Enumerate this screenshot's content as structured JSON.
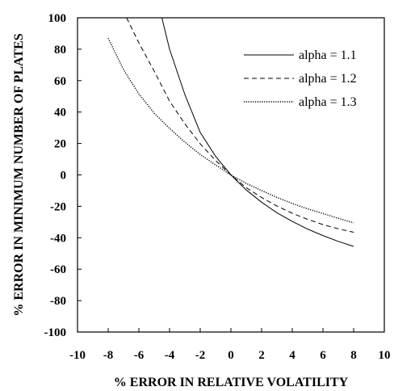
{
  "chart_data": {
    "type": "line",
    "xlabel": "% ERROR IN RELATIVE VOLATILITY",
    "ylabel": "% ERROR IN MINIMUM NUMBER OF PLATES",
    "xlim": [
      -10,
      10
    ],
    "ylim": [
      -100,
      100
    ],
    "xticks": [
      "-10",
      "-8",
      "-6",
      "-4",
      "-2",
      "0",
      "2",
      "4",
      "6",
      "8",
      "10"
    ],
    "yticks": [
      "100",
      "80",
      "60",
      "40",
      "20",
      "0",
      "-20",
      "-40",
      "-60",
      "-80",
      "-100"
    ],
    "grid": false,
    "legend_position": "top-right",
    "series": [
      {
        "name": "alpha = 1.1",
        "style": "solid",
        "x": [
          -4.5,
          -4.0,
          -3.0,
          -2.0,
          -1.0,
          0,
          1,
          2,
          3,
          4,
          5,
          6,
          7,
          8
        ],
        "y": [
          100,
          80.0,
          51.1,
          27.0,
          11.9,
          0,
          -9.6,
          -17.4,
          -24.1,
          -29.6,
          -34.5,
          -38.6,
          -42.3,
          -45.5
        ]
      },
      {
        "name": "alpha = 1.2",
        "style": "dashed",
        "x": [
          -6.8,
          -6.0,
          -5.0,
          -4.0,
          -3.0,
          -2.0,
          -1.0,
          0,
          1,
          2,
          3,
          4,
          5,
          6,
          7,
          8
        ],
        "y": [
          100,
          84.0,
          66.0,
          47.0,
          32.5,
          19.8,
          9.2,
          0,
          -8.1,
          -14.4,
          -19.8,
          -24.4,
          -28.3,
          -31.6,
          -34.3,
          -36.5
        ]
      },
      {
        "name": "alpha = 1.3",
        "style": "dotted",
        "x": [
          -8.0,
          -7.0,
          -6.0,
          -5.0,
          -4.0,
          -3.0,
          -2.0,
          -1.0,
          0,
          1,
          2,
          3,
          4,
          5,
          6,
          7,
          8
        ],
        "y": [
          87.0,
          67.0,
          51.5,
          39.3,
          29.6,
          20.8,
          13.0,
          6.3,
          0,
          -5.4,
          -10.0,
          -14.3,
          -18.2,
          -21.6,
          -24.6,
          -27.6,
          -30.5
        ]
      }
    ]
  }
}
